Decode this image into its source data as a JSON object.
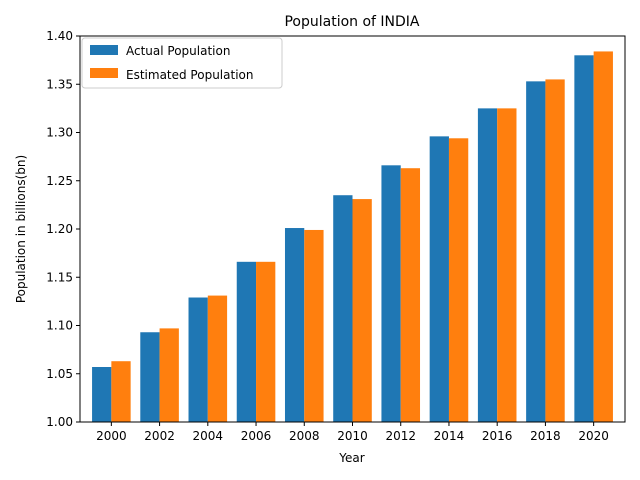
{
  "chart_data": {
    "type": "bar",
    "title": "Population of INDIA",
    "xlabel": "Year",
    "ylabel": "Population in billions(bn)",
    "categories": [
      "2000",
      "2002",
      "2004",
      "2006",
      "2008",
      "2010",
      "2012",
      "2014",
      "2016",
      "2018",
      "2020"
    ],
    "series": [
      {
        "name": "Actual Population",
        "color": "#1f77b4",
        "values": [
          1.057,
          1.093,
          1.129,
          1.166,
          1.201,
          1.235,
          1.266,
          1.296,
          1.325,
          1.353,
          1.38
        ]
      },
      {
        "name": "Estimated Population",
        "color": "#ff7f0e",
        "values": [
          1.063,
          1.097,
          1.131,
          1.166,
          1.199,
          1.231,
          1.263,
          1.294,
          1.325,
          1.355,
          1.384
        ]
      }
    ],
    "ylim": [
      1.0,
      1.4
    ],
    "yticks": [
      "1.00",
      "1.05",
      "1.10",
      "1.15",
      "1.20",
      "1.25",
      "1.30",
      "1.35",
      "1.40"
    ],
    "grid": false,
    "legend_position": "top-left"
  }
}
